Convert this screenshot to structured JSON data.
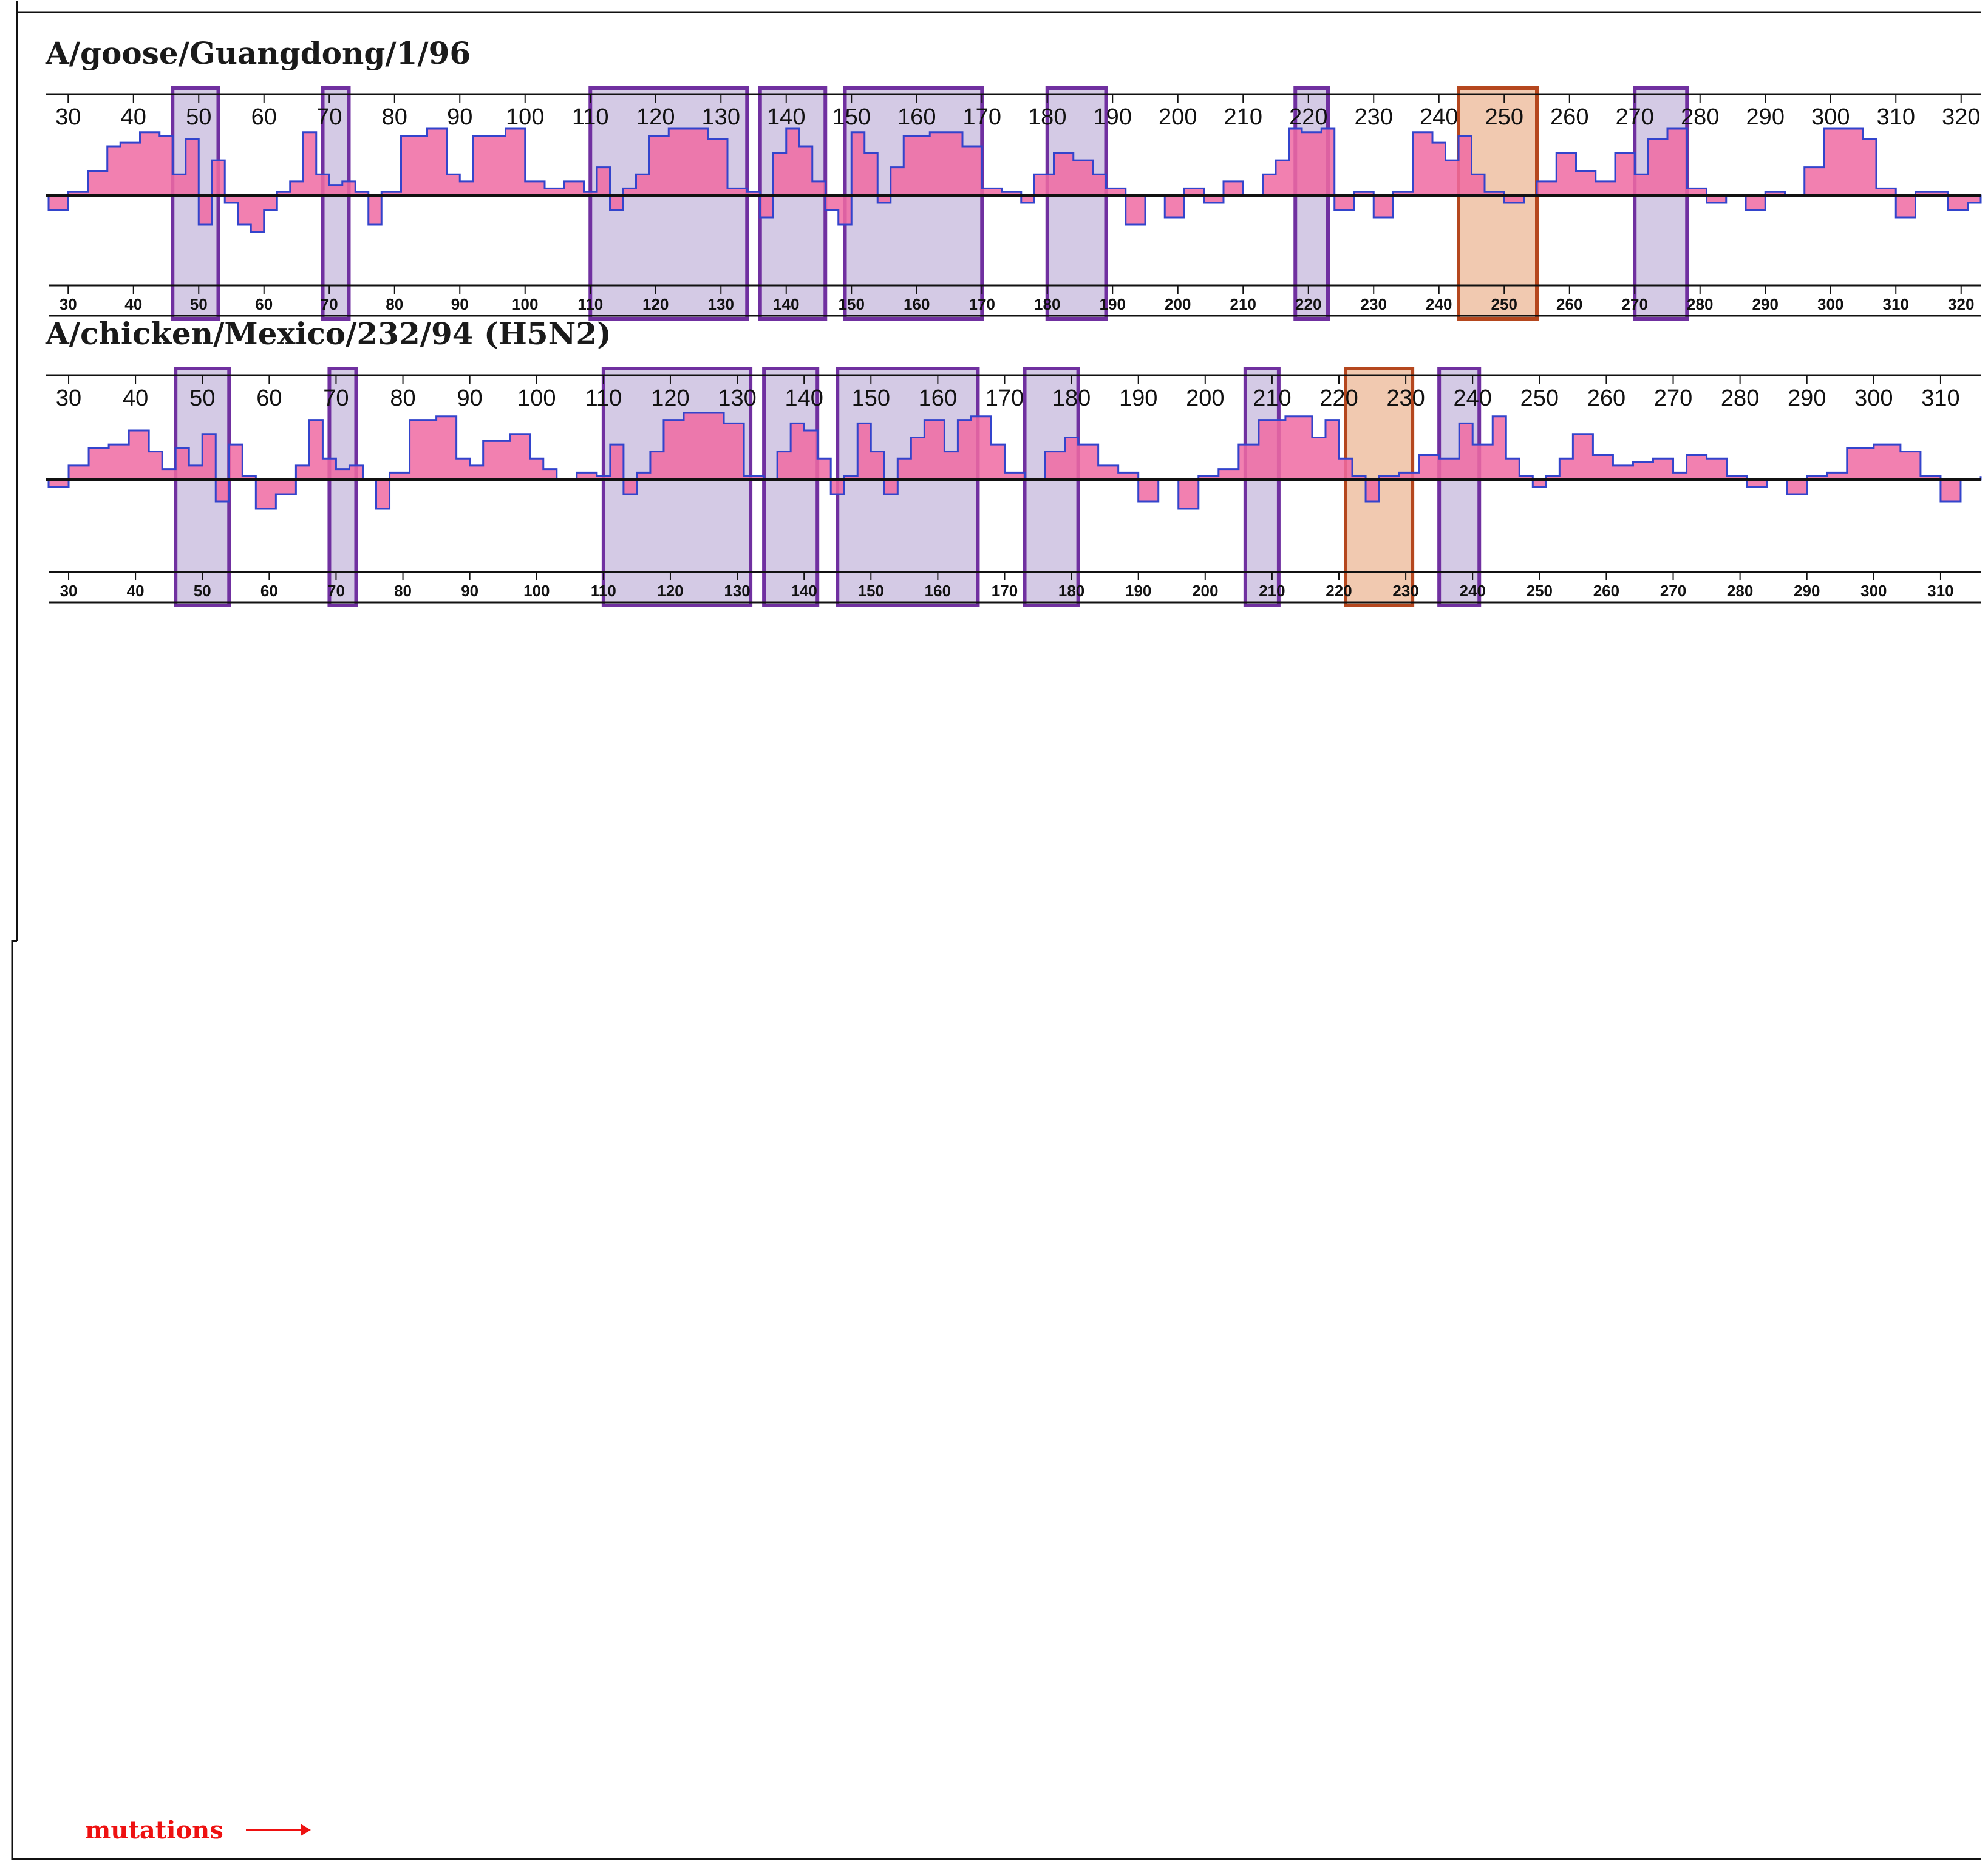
{
  "figure": {
    "mutations_label": "mutations"
  },
  "colors": {
    "profile_fill": "#f06aa2",
    "profile_line": "#3344cc",
    "box_fill": "#a996cc",
    "box_stroke": "#7030a0",
    "highlight_fill": "#e8a57c",
    "highlight_stroke": "#b5471e",
    "mutation": "#ee1111"
  },
  "chart_data": [
    {
      "type": "area",
      "title": "A/goose/Guangdong/1/96",
      "x_range": [
        27,
        323
      ],
      "x_ticks": [
        30,
        40,
        50,
        60,
        70,
        80,
        90,
        100,
        110,
        120,
        130,
        140,
        150,
        160,
        170,
        180,
        190,
        200,
        210,
        220,
        230,
        240,
        250,
        260,
        270,
        280,
        290,
        300,
        310,
        320
      ],
      "boxes": [
        [
          46,
          53
        ],
        [
          69,
          73
        ],
        [
          110,
          134
        ],
        [
          136,
          146
        ],
        [
          149,
          170
        ],
        [
          180,
          189
        ],
        [
          218,
          223
        ]
      ],
      "highlight": [
        243,
        255
      ],
      "box_extra": [
        [
          270,
          278
        ]
      ],
      "profile": [
        [
          27,
          -0.1
        ],
        [
          30,
          0.05
        ],
        [
          33,
          0.35
        ],
        [
          36,
          0.7
        ],
        [
          38,
          0.75
        ],
        [
          41,
          0.9
        ],
        [
          44,
          0.85
        ],
        [
          46,
          0.3
        ],
        [
          48,
          0.8
        ],
        [
          50,
          -0.2
        ],
        [
          52,
          0.5
        ],
        [
          54,
          -0.05
        ],
        [
          56,
          -0.2
        ],
        [
          58,
          -0.25
        ],
        [
          60,
          -0.1
        ],
        [
          62,
          0.05
        ],
        [
          64,
          0.2
        ],
        [
          66,
          0.9
        ],
        [
          68,
          0.3
        ],
        [
          70,
          0.15
        ],
        [
          72,
          0.2
        ],
        [
          74,
          0.05
        ],
        [
          76,
          -0.2
        ],
        [
          78,
          0.05
        ],
        [
          81,
          0.85
        ],
        [
          85,
          0.95
        ],
        [
          88,
          0.3
        ],
        [
          90,
          0.2
        ],
        [
          92,
          0.85
        ],
        [
          97,
          0.95
        ],
        [
          100,
          0.2
        ],
        [
          103,
          0.1
        ],
        [
          106,
          0.2
        ],
        [
          109,
          0.05
        ],
        [
          111,
          0.4
        ],
        [
          113,
          -0.1
        ],
        [
          115,
          0.1
        ],
        [
          117,
          0.3
        ],
        [
          119,
          0.85
        ],
        [
          122,
          0.95
        ],
        [
          128,
          0.8
        ],
        [
          131,
          0.1
        ],
        [
          134,
          0.05
        ],
        [
          136,
          -0.15
        ],
        [
          138,
          0.6
        ],
        [
          140,
          0.95
        ],
        [
          142,
          0.7
        ],
        [
          144,
          0.2
        ],
        [
          146,
          -0.1
        ],
        [
          148,
          -0.2
        ],
        [
          150,
          0.9
        ],
        [
          152,
          0.6
        ],
        [
          154,
          -0.05
        ],
        [
          156,
          0.4
        ],
        [
          158,
          0.85
        ],
        [
          162,
          0.9
        ],
        [
          167,
          0.7
        ],
        [
          170,
          0.1
        ],
        [
          173,
          0.05
        ],
        [
          176,
          -0.05
        ],
        [
          178,
          0.3
        ],
        [
          181,
          0.6
        ],
        [
          184,
          0.5
        ],
        [
          187,
          0.3
        ],
        [
          189,
          0.1
        ],
        [
          192,
          -0.2
        ],
        [
          195,
          0.0
        ],
        [
          198,
          -0.15
        ],
        [
          201,
          0.1
        ],
        [
          204,
          -0.05
        ],
        [
          207,
          0.2
        ],
        [
          210,
          0.0
        ],
        [
          213,
          0.3
        ],
        [
          215,
          0.5
        ],
        [
          217,
          0.95
        ],
        [
          219,
          0.9
        ],
        [
          222,
          0.95
        ],
        [
          224,
          -0.1
        ],
        [
          227,
          0.05
        ],
        [
          230,
          -0.15
        ],
        [
          233,
          0.05
        ],
        [
          236,
          0.9
        ],
        [
          239,
          0.75
        ],
        [
          241,
          0.5
        ],
        [
          243,
          0.85
        ],
        [
          245,
          0.3
        ],
        [
          247,
          0.05
        ],
        [
          250,
          -0.05
        ],
        [
          253,
          0.0
        ],
        [
          255,
          0.2
        ],
        [
          258,
          0.6
        ],
        [
          261,
          0.35
        ],
        [
          264,
          0.2
        ],
        [
          267,
          0.6
        ],
        [
          270,
          0.3
        ],
        [
          272,
          0.8
        ],
        [
          275,
          0.95
        ],
        [
          278,
          0.1
        ],
        [
          281,
          -0.05
        ],
        [
          284,
          0.0
        ],
        [
          287,
          -0.1
        ],
        [
          290,
          0.05
        ],
        [
          293,
          0.0
        ],
        [
          296,
          0.4
        ],
        [
          299,
          0.95
        ],
        [
          305,
          0.8
        ],
        [
          307,
          0.1
        ],
        [
          310,
          -0.15
        ],
        [
          313,
          0.05
        ],
        [
          316,
          0.05
        ],
        [
          318,
          -0.1
        ],
        [
          321,
          -0.05
        ]
      ],
      "mutations": []
    },
    {
      "type": "area",
      "title": "A/chicken/Mexico/232/94 (H5N2)",
      "x_range": [
        27,
        316
      ],
      "x_ticks": [
        30,
        40,
        50,
        60,
        70,
        80,
        90,
        100,
        110,
        120,
        130,
        140,
        150,
        160,
        170,
        180,
        190,
        200,
        210,
        220,
        230,
        240,
        250,
        260,
        270,
        280,
        290,
        300,
        310
      ],
      "boxes": [
        [
          46,
          54
        ],
        [
          69,
          73
        ],
        [
          110,
          132
        ],
        [
          134,
          142
        ],
        [
          145,
          166
        ],
        [
          173,
          181
        ],
        [
          206,
          211
        ],
        [
          235,
          241
        ]
      ],
      "highlight": [
        221,
        231
      ],
      "box_extra": [],
      "profile": [
        [
          27,
          -0.05
        ],
        [
          30,
          0.2
        ],
        [
          33,
          0.45
        ],
        [
          36,
          0.5
        ],
        [
          39,
          0.7
        ],
        [
          42,
          0.4
        ],
        [
          44,
          0.15
        ],
        [
          46,
          0.45
        ],
        [
          48,
          0.2
        ],
        [
          50,
          0.65
        ],
        [
          52,
          -0.15
        ],
        [
          54,
          0.5
        ],
        [
          56,
          0.05
        ],
        [
          58,
          -0.2
        ],
        [
          61,
          -0.1
        ],
        [
          64,
          0.2
        ],
        [
          66,
          0.85
        ],
        [
          68,
          0.3
        ],
        [
          70,
          0.15
        ],
        [
          72,
          0.2
        ],
        [
          74,
          0.0
        ],
        [
          76,
          -0.2
        ],
        [
          78,
          0.1
        ],
        [
          81,
          0.85
        ],
        [
          85,
          0.9
        ],
        [
          88,
          0.3
        ],
        [
          90,
          0.2
        ],
        [
          92,
          0.55
        ],
        [
          96,
          0.65
        ],
        [
          99,
          0.3
        ],
        [
          101,
          0.15
        ],
        [
          103,
          0.0
        ],
        [
          106,
          0.1
        ],
        [
          109,
          0.05
        ],
        [
          111,
          0.5
        ],
        [
          113,
          -0.1
        ],
        [
          115,
          0.1
        ],
        [
          117,
          0.4
        ],
        [
          119,
          0.85
        ],
        [
          122,
          0.95
        ],
        [
          128,
          0.8
        ],
        [
          131,
          0.05
        ],
        [
          134,
          0.0
        ],
        [
          136,
          0.4
        ],
        [
          138,
          0.8
        ],
        [
          140,
          0.7
        ],
        [
          142,
          0.3
        ],
        [
          144,
          -0.1
        ],
        [
          146,
          0.05
        ],
        [
          148,
          0.8
        ],
        [
          150,
          0.4
        ],
        [
          152,
          -0.1
        ],
        [
          154,
          0.3
        ],
        [
          156,
          0.6
        ],
        [
          158,
          0.85
        ],
        [
          161,
          0.4
        ],
        [
          163,
          0.85
        ],
        [
          165,
          0.9
        ],
        [
          168,
          0.5
        ],
        [
          170,
          0.1
        ],
        [
          173,
          0.0
        ],
        [
          176,
          0.4
        ],
        [
          179,
          0.6
        ],
        [
          181,
          0.5
        ],
        [
          184,
          0.2
        ],
        [
          187,
          0.1
        ],
        [
          190,
          -0.15
        ],
        [
          193,
          0.0
        ],
        [
          196,
          -0.2
        ],
        [
          199,
          0.05
        ],
        [
          202,
          0.15
        ],
        [
          205,
          0.5
        ],
        [
          208,
          0.85
        ],
        [
          212,
          0.9
        ],
        [
          216,
          0.6
        ],
        [
          218,
          0.85
        ],
        [
          220,
          0.3
        ],
        [
          222,
          0.05
        ],
        [
          224,
          -0.15
        ],
        [
          226,
          0.05
        ],
        [
          229,
          0.1
        ],
        [
          232,
          0.35
        ],
        [
          235,
          0.3
        ],
        [
          238,
          0.8
        ],
        [
          240,
          0.5
        ],
        [
          243,
          0.9
        ],
        [
          245,
          0.3
        ],
        [
          247,
          0.05
        ],
        [
          249,
          -0.05
        ],
        [
          251,
          0.05
        ],
        [
          253,
          0.3
        ],
        [
          255,
          0.65
        ],
        [
          258,
          0.35
        ],
        [
          261,
          0.2
        ],
        [
          264,
          0.25
        ],
        [
          267,
          0.3
        ],
        [
          270,
          0.1
        ],
        [
          272,
          0.35
        ],
        [
          275,
          0.3
        ],
        [
          278,
          0.05
        ],
        [
          281,
          -0.05
        ],
        [
          284,
          0.0
        ],
        [
          287,
          -0.1
        ],
        [
          290,
          0.05
        ],
        [
          293,
          0.1
        ],
        [
          296,
          0.45
        ],
        [
          300,
          0.5
        ],
        [
          304,
          0.4
        ],
        [
          307,
          0.05
        ],
        [
          310,
          -0.15
        ],
        [
          313,
          0.0
        ],
        [
          316,
          0.05
        ]
      ],
      "mutations": []
    }
  ]
}
